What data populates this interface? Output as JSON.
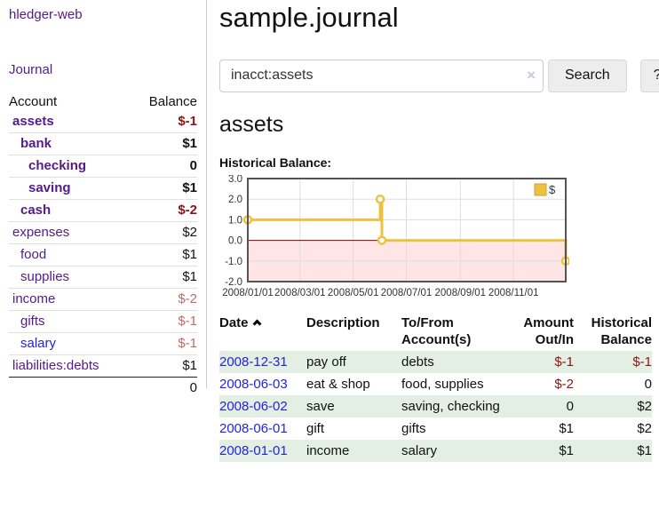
{
  "colors": {
    "link-purple": "#551a8b",
    "link-blue": "#2323dc",
    "neg-strong": "#8b1515",
    "neg-soft": "#bc6c6c",
    "row-green": "#e3efe3",
    "button-bg": "#ededed",
    "divider": "#cccccc",
    "chart-gold": "#edc240",
    "chart-gold-border": "#c9a42f",
    "chart-border": "#545454",
    "chart-grid": "#dddddd",
    "chart-zero-line": "#8b0000",
    "chart-negative-fill": "rgba(255,0,0,0.10)"
  },
  "sidebar": {
    "app_title": "hledger-web",
    "journal_link": "Journal",
    "header": {
      "account": "Account",
      "balance": "Balance"
    },
    "accounts": [
      {
        "name": "assets",
        "indent": 0,
        "balance": "$-1",
        "bold": true,
        "balance_class": "neg-strong"
      },
      {
        "name": "bank",
        "indent": 1,
        "balance": "$1",
        "bold": true,
        "balance_class": ""
      },
      {
        "name": "checking",
        "indent": 2,
        "balance": "0",
        "bold": true,
        "balance_class": ""
      },
      {
        "name": "saving",
        "indent": 2,
        "balance": "$1",
        "bold": true,
        "balance_class": ""
      },
      {
        "name": "cash",
        "indent": 1,
        "balance": "$-2",
        "bold": true,
        "balance_class": "neg-strong"
      },
      {
        "name": "expenses",
        "indent": 0,
        "balance": "$2",
        "bold": false,
        "balance_class": ""
      },
      {
        "name": "food",
        "indent": 1,
        "balance": "$1",
        "bold": false,
        "balance_class": ""
      },
      {
        "name": "supplies",
        "indent": 1,
        "balance": "$1",
        "bold": false,
        "balance_class": ""
      },
      {
        "name": "income",
        "indent": 0,
        "balance": "$-2",
        "bold": false,
        "balance_class": "neg-soft"
      },
      {
        "name": "gifts",
        "indent": 1,
        "balance": "$-1",
        "bold": false,
        "balance_class": "neg-soft"
      },
      {
        "name": "salary",
        "indent": 1,
        "balance": "$-1",
        "bold": false,
        "balance_class": "neg-soft",
        "blue": true
      },
      {
        "name": "liabilities:debts",
        "indent": 0,
        "balance": "$1",
        "bold": false,
        "balance_class": ""
      }
    ],
    "total": "0"
  },
  "main": {
    "title": "sample.journal",
    "search": {
      "value": "inacct:assets",
      "clear_icon": "×",
      "search_button": "Search",
      "help_button": "?"
    },
    "account_heading": "assets",
    "chart_heading": "Historical Balance:"
  },
  "chart_data": {
    "type": "line",
    "step": true,
    "title": "Historical Balance",
    "xlim": [
      "2008-01-01",
      "2008-12-31"
    ],
    "ylim": [
      -2,
      3
    ],
    "x_ticks": [
      {
        "date": "2008-01-01",
        "label": "2008/01/01"
      },
      {
        "date": "2008-03-01",
        "label": "2008/03/01"
      },
      {
        "date": "2008-05-01",
        "label": "2008/05/01"
      },
      {
        "date": "2008-07-01",
        "label": "2008/07/01"
      },
      {
        "date": "2008-09-01",
        "label": "2008/09/01"
      },
      {
        "date": "2008-11-01",
        "label": "2008/11/01"
      }
    ],
    "y_ticks": [
      {
        "value": 3,
        "label": "3.0"
      },
      {
        "value": 2,
        "label": "2.0"
      },
      {
        "value": 1,
        "label": "1.0"
      },
      {
        "value": 0,
        "label": "0.0"
      },
      {
        "value": -1,
        "label": "-1.0"
      },
      {
        "value": -2,
        "label": "-2.0"
      }
    ],
    "series": [
      {
        "name": "$",
        "color": "#edc240",
        "points": [
          {
            "x": "2008-01-01",
            "y": 1
          },
          {
            "x": "2008-06-01",
            "y": 2
          },
          {
            "x": "2008-06-03",
            "y": 0
          },
          {
            "x": "2008-12-31",
            "y": -1
          }
        ]
      }
    ],
    "legend": {
      "position": "top-right",
      "label": "$"
    },
    "negative_region_shaded": true,
    "grid": true
  },
  "register": {
    "columns": [
      "Date",
      "Description",
      "To/From Account(s)",
      "Amount Out/In",
      "Historical Balance"
    ],
    "sort": {
      "column": "Date",
      "direction": "ascending"
    },
    "rows": [
      {
        "date": "2008-12-31",
        "description": "pay off",
        "accounts": "debts",
        "amount": "$-1",
        "balance": "$-1",
        "amount_neg": true,
        "balance_neg": true
      },
      {
        "date": "2008-06-03",
        "description": "eat & shop",
        "accounts": "food, supplies",
        "amount": "$-2",
        "balance": "0",
        "amount_neg": true,
        "balance_neg": false
      },
      {
        "date": "2008-06-02",
        "description": "save",
        "accounts": "saving, checking",
        "amount": "0",
        "balance": "$2",
        "amount_neg": false,
        "balance_neg": false
      },
      {
        "date": "2008-06-01",
        "description": "gift",
        "accounts": "gifts",
        "amount": "$1",
        "balance": "$2",
        "amount_neg": false,
        "balance_neg": false
      },
      {
        "date": "2008-01-01",
        "description": "income",
        "accounts": "salary",
        "amount": "$1",
        "balance": "$1",
        "amount_neg": false,
        "balance_neg": false
      }
    ]
  }
}
